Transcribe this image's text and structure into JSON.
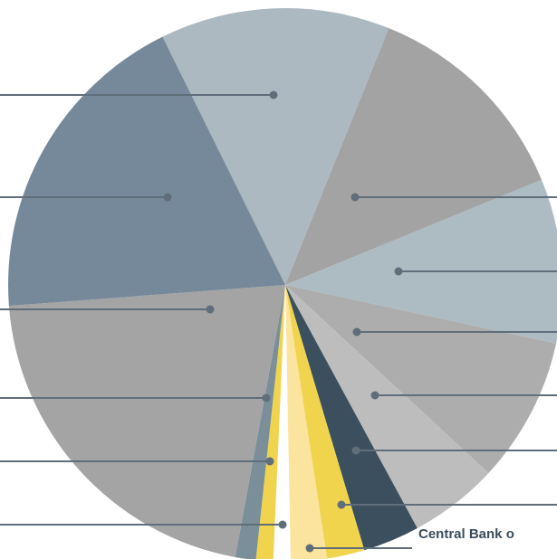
{
  "chart_data": {
    "type": "pie",
    "categories": [
      null,
      null,
      null,
      null,
      null,
      null,
      null,
      "Central Bank o",
      null,
      null,
      null,
      null,
      null
    ],
    "values": [
      13.4,
      12.7,
      9.6,
      8.5,
      5.2,
      3.3,
      2.2,
      2.1,
      1.0,
      1.0,
      1.2,
      20.9,
      18.9
    ],
    "colors": [
      "#adb9c0",
      "#a3a3a3",
      "#adbbc3",
      "#adadad",
      "#bdbdbe",
      "#3b4f5e",
      "#f0d44e",
      "#fbe49e",
      "#ffffff",
      "#f0d44e",
      "#7b8f9a",
      "#a4a4a4",
      "#75899a"
    ]
  }
}
